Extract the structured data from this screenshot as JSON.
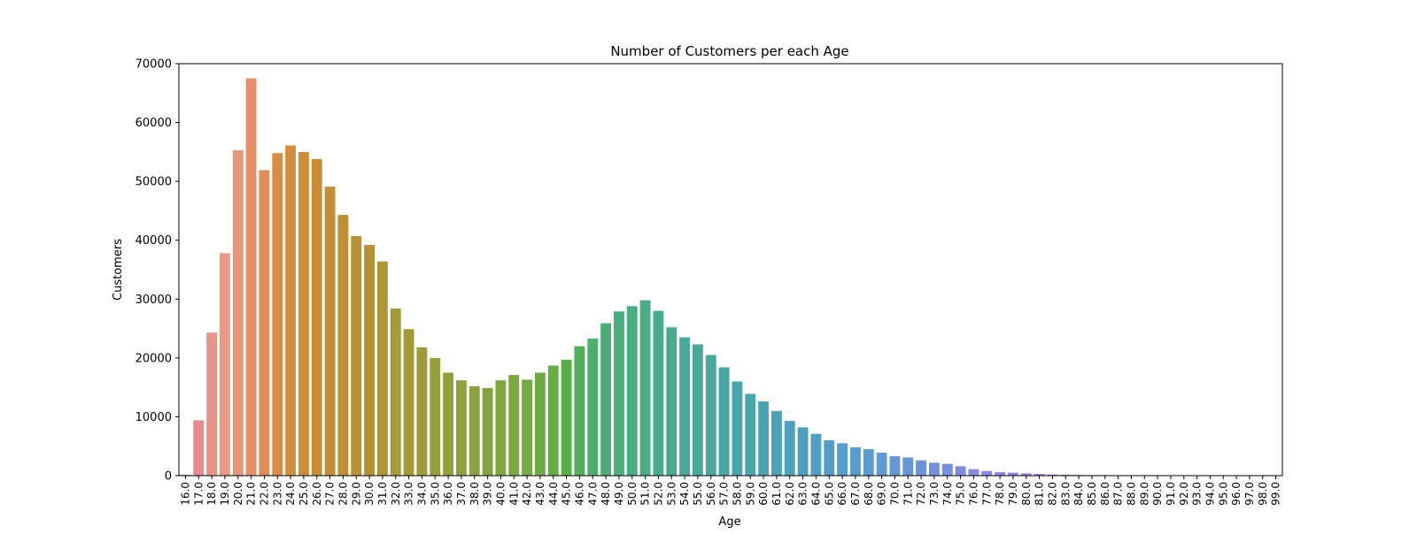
{
  "chart_data": {
    "type": "bar",
    "title": "Number of Customers per each Age",
    "xlabel": "Age",
    "ylabel": "Customers",
    "ylim": [
      0,
      70000
    ],
    "yticks": [
      0,
      10000,
      20000,
      30000,
      40000,
      50000,
      60000,
      70000
    ],
    "ytick_labels": [
      "0",
      "10000",
      "20000",
      "30000",
      "40000",
      "50000",
      "60000",
      "70000"
    ],
    "grid": false,
    "legend": "none",
    "categories": [
      "16.0",
      "17.0",
      "18.0",
      "19.0",
      "20.0",
      "21.0",
      "22.0",
      "23.0",
      "24.0",
      "25.0",
      "26.0",
      "27.0",
      "28.0",
      "29.0",
      "30.0",
      "31.0",
      "32.0",
      "33.0",
      "34.0",
      "35.0",
      "36.0",
      "37.0",
      "38.0",
      "39.0",
      "40.0",
      "41.0",
      "42.0",
      "43.0",
      "44.0",
      "45.0",
      "46.0",
      "47.0",
      "48.0",
      "49.0",
      "50.0",
      "51.0",
      "52.0",
      "53.0",
      "54.0",
      "55.0",
      "56.0",
      "57.0",
      "58.0",
      "59.0",
      "60.0",
      "61.0",
      "62.0",
      "63.0",
      "64.0",
      "65.0",
      "66.0",
      "67.0",
      "68.0",
      "69.0",
      "70.0",
      "71.0",
      "72.0",
      "73.0",
      "74.0",
      "75.0",
      "76.0",
      "77.0",
      "78.0",
      "79.0",
      "80.0",
      "81.0",
      "82.0",
      "83.0",
      "84.0",
      "85.0",
      "86.0",
      "87.0",
      "88.0",
      "89.0",
      "90.0",
      "91.0",
      "92.0",
      "93.0",
      "94.0",
      "95.0",
      "96.0",
      "97.0",
      "98.0",
      "99.0"
    ],
    "values": [
      150,
      9400,
      24300,
      37800,
      55300,
      67500,
      51900,
      54800,
      56100,
      55000,
      53800,
      49100,
      44300,
      40700,
      39200,
      36400,
      28400,
      24900,
      21800,
      20000,
      17500,
      16200,
      15200,
      14900,
      16200,
      17100,
      16300,
      17500,
      18700,
      19700,
      22000,
      23300,
      25900,
      27900,
      28800,
      29800,
      28000,
      25200,
      23500,
      22300,
      20500,
      18400,
      16000,
      13900,
      12600,
      11000,
      9300,
      8200,
      7100,
      6000,
      5500,
      4800,
      4500,
      3900,
      3300,
      3100,
      2600,
      2200,
      2000,
      1600,
      1100,
      800,
      600,
      500,
      400,
      300,
      200,
      160,
      120,
      90,
      60,
      50,
      40,
      30,
      25,
      20,
      15,
      12,
      10,
      8,
      6,
      5,
      4,
      3
    ],
    "colors": [
      "#e8868e",
      "#e88c8e",
      "#e8948b",
      "#e89a85",
      "#e6947a",
      "#e69069",
      "#e08e55",
      "#d88c45",
      "#d48f3c",
      "#cf8e36",
      "#c98d35",
      "#c48e34",
      "#bf8f34",
      "#ba9134",
      "#b59235",
      "#b09436",
      "#a99838",
      "#a39a39",
      "#9e9c3a",
      "#999e3b",
      "#949f3c",
      "#8fa13d",
      "#8aa33e",
      "#85a43f",
      "#80a640",
      "#7ba741",
      "#76a943",
      "#70aa45",
      "#67ac46",
      "#5aae4a",
      "#50ae5c",
      "#4cae6c",
      "#4bad75",
      "#4aad7c",
      "#49ad82",
      "#49ac87",
      "#48ac8c",
      "#48ab91",
      "#48aa96",
      "#48a99b",
      "#48a8a0",
      "#48a6a5",
      "#48a5aa",
      "#49a4ae",
      "#4aa3b3",
      "#4ba2b7",
      "#4ca1bb",
      "#4ea0bf",
      "#509fc3",
      "#529ec7",
      "#559dca",
      "#589ccd",
      "#5c9ad1",
      "#6099d4",
      "#6497d7",
      "#6895da",
      "#6d93dc",
      "#7391de",
      "#798fe0",
      "#808ce2",
      "#878ae4",
      "#8e87e5",
      "#9585e6",
      "#9c82e7",
      "#a480e7",
      "#ab7de7",
      "#b37ae6",
      "#ba78e5",
      "#c176e3",
      "#c874e1",
      "#cf72dd",
      "#d571d9",
      "#da70d4",
      "#de70ce",
      "#e171c8",
      "#e373c1",
      "#e476bb",
      "#e579b4",
      "#e67cae",
      "#e680a8",
      "#e783a2",
      "#e7859c",
      "#e88797",
      "#e88892"
    ]
  }
}
